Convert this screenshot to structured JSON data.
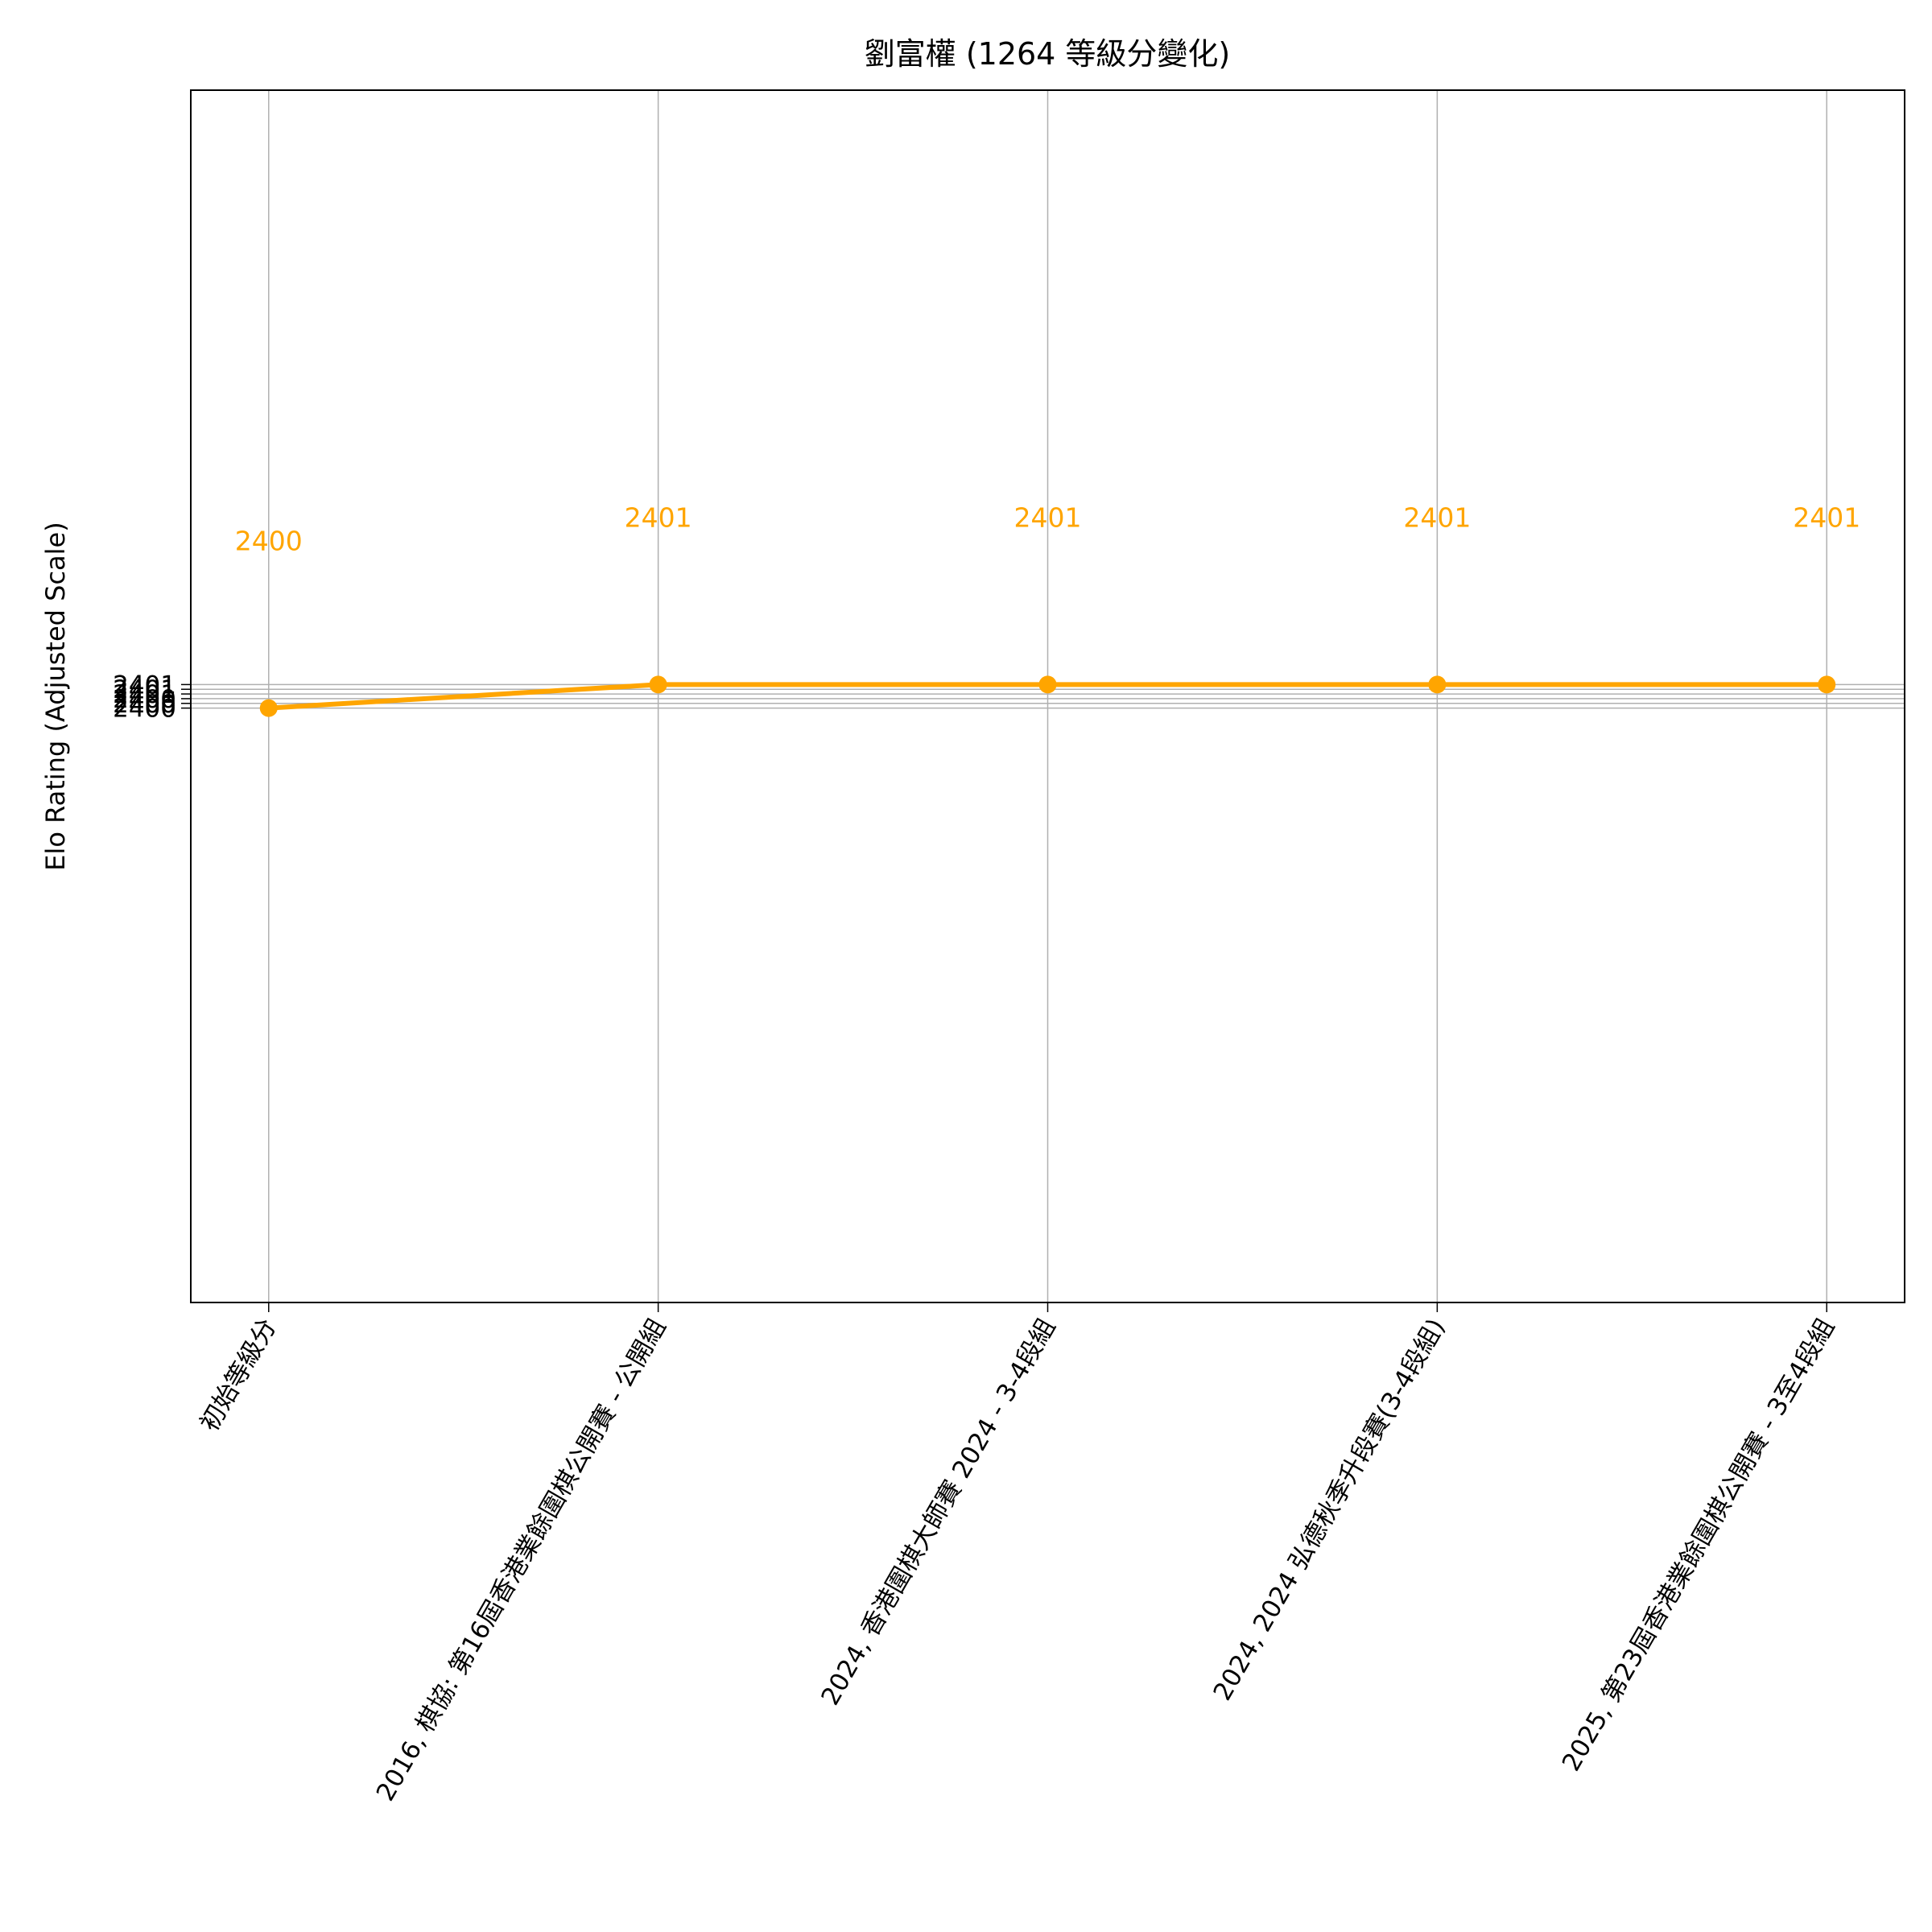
{
  "chart_data": {
    "type": "line",
    "title": "劉富權 (1264 等級分變化)",
    "y_label": "Elo Rating (Adjusted Scale)",
    "categories": [
      "初始等級分",
      "2016, 棋協: 第16屆香港業餘圍棋公開賽 - 公開組",
      "2024, 香港圍棋大師賽 2024 - 3-4段組",
      "2024, 2024 弘德秋季升段賽(3-4段組)",
      "2025, 第23屆香港業餘圍棋公開賽 - 3至4段組"
    ],
    "values": [
      2400,
      2401,
      2401,
      2401,
      2401
    ],
    "color": "#ffa500",
    "ylim": [
      2374.74,
      2426.26
    ],
    "yticks": [
      2400,
      {
        "value": 2400.2,
        "label": "2400"
      },
      {
        "value": 2400.4,
        "label": "2400"
      },
      {
        "value": 2400.6,
        "label": "2401"
      },
      {
        "value": 2400.8,
        "label": "2401"
      },
      2401
    ],
    "grid": true
  }
}
